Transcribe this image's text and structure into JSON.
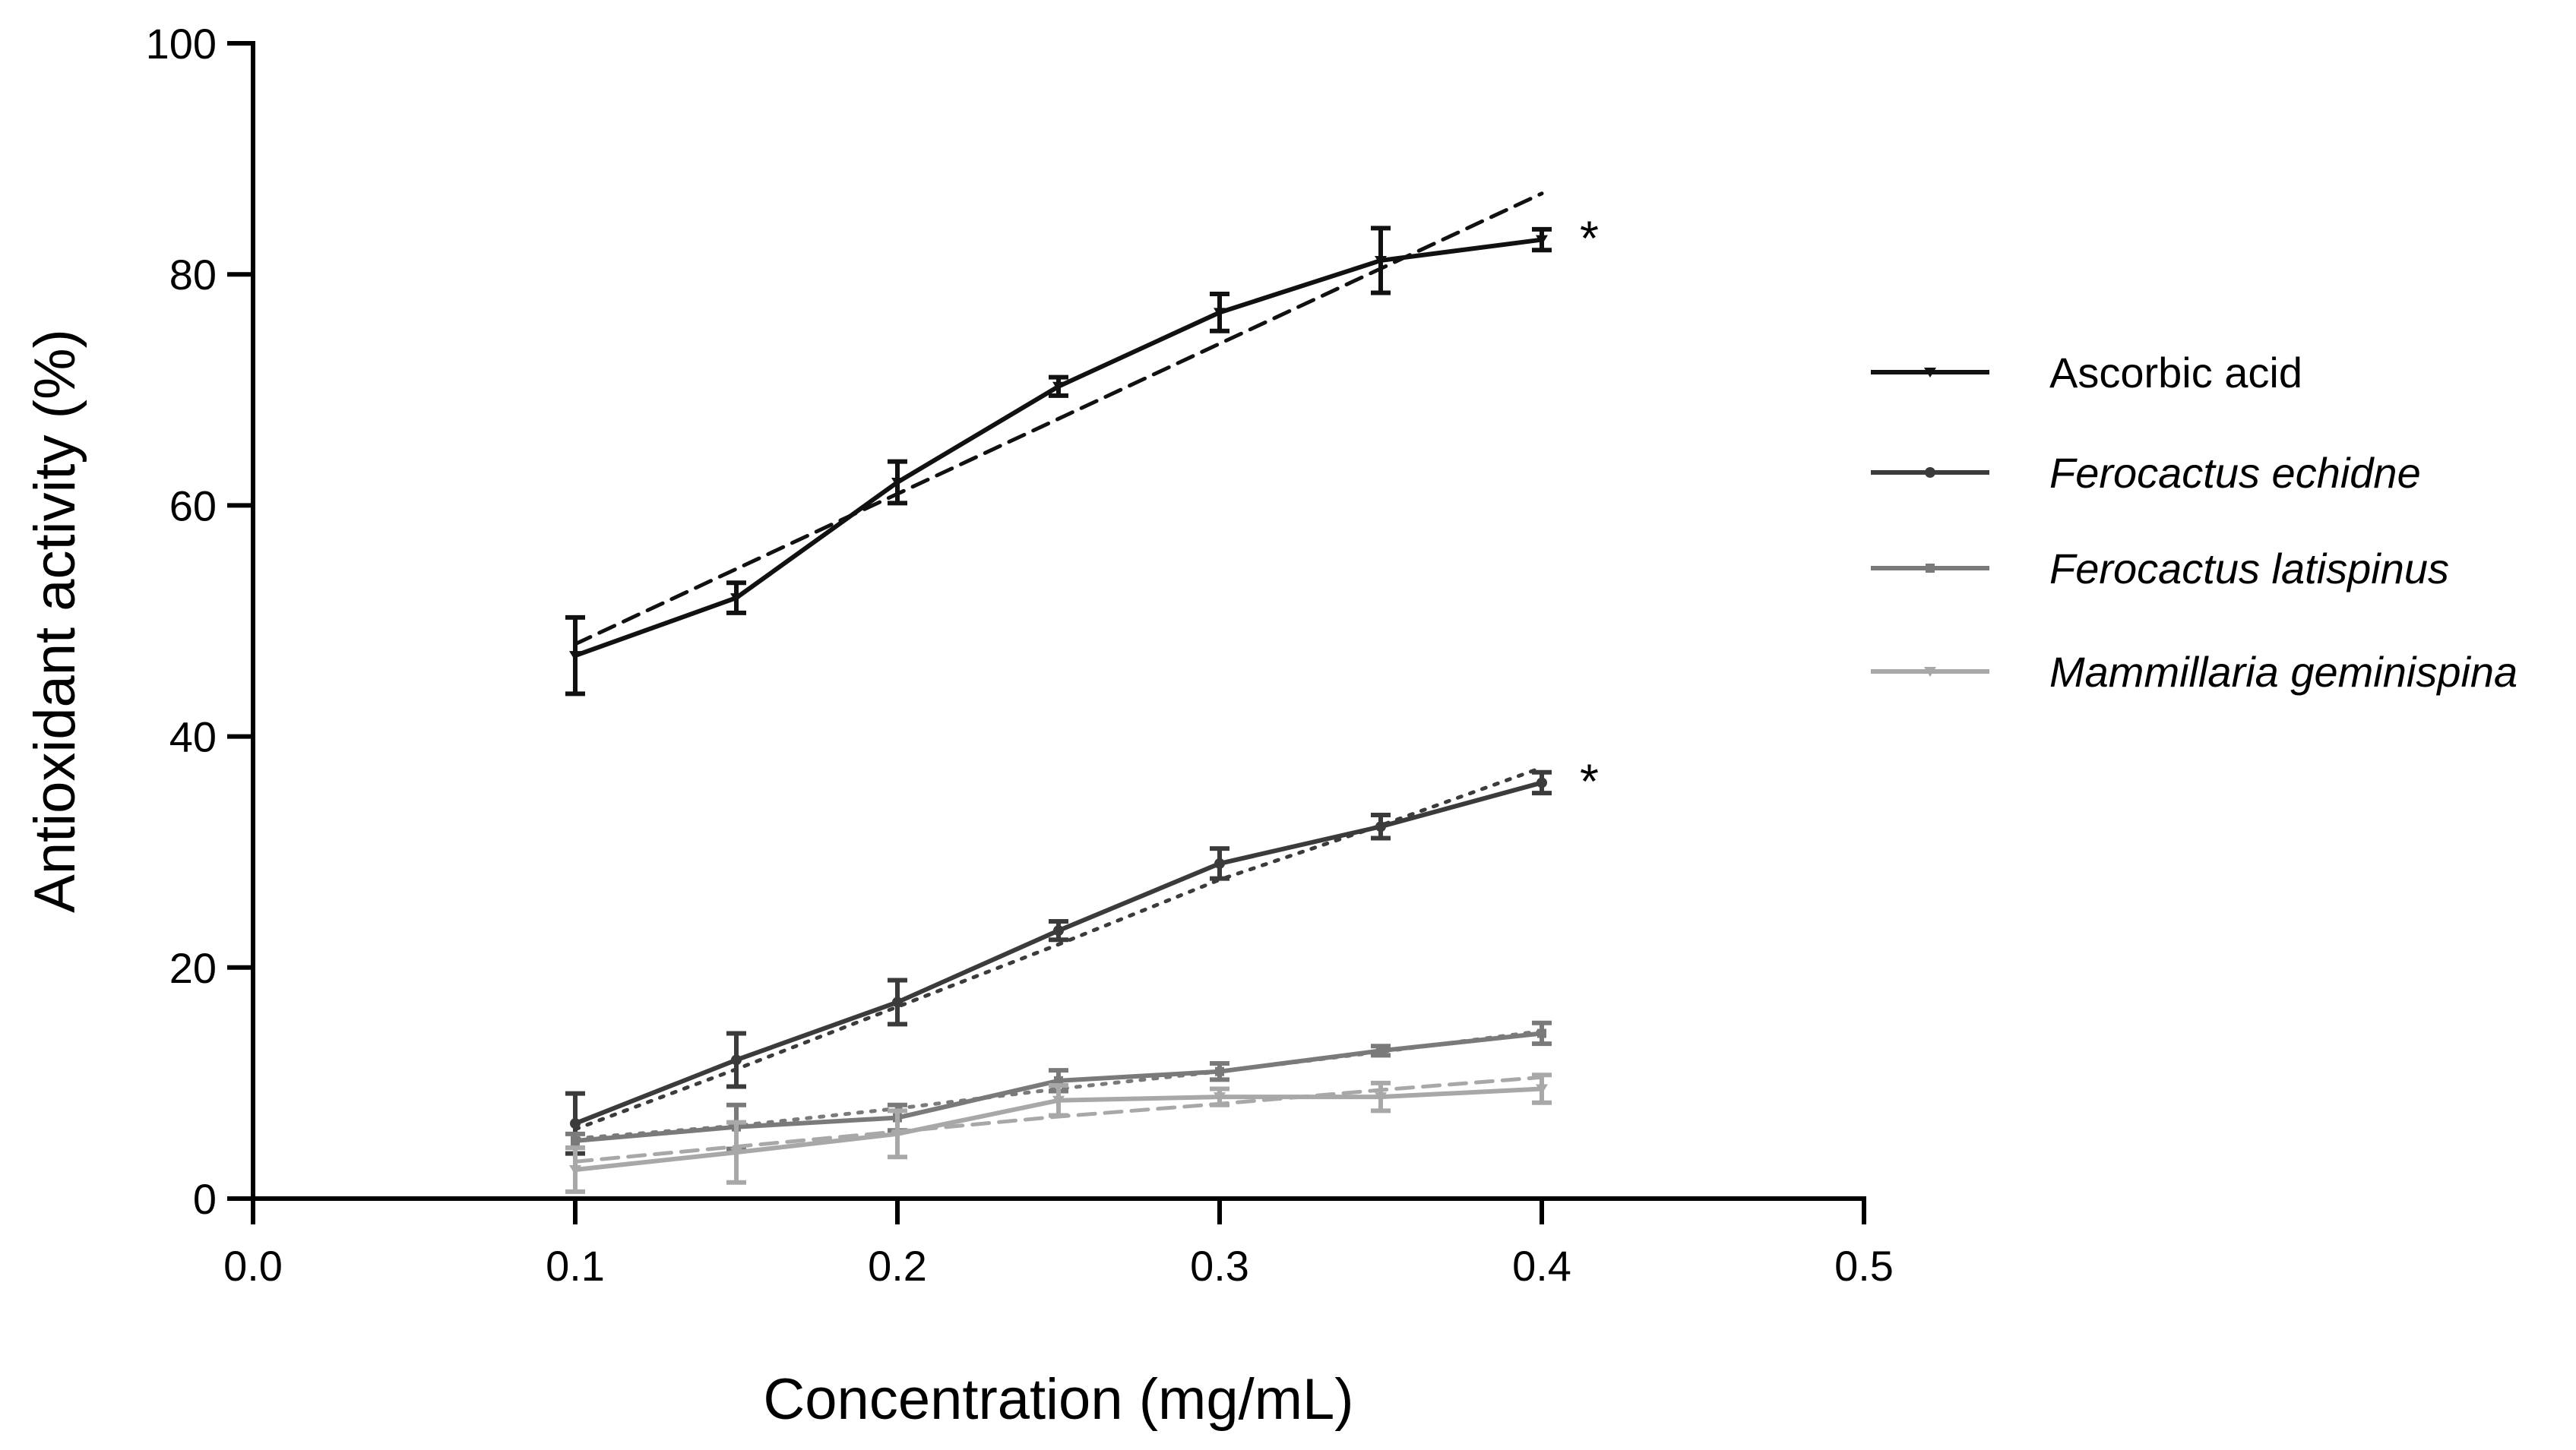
{
  "chart_data": {
    "type": "line",
    "title": "",
    "xlabel": "Concentration (mg/mL)",
    "ylabel": "Antioxidant activity (%)",
    "xlim": [
      0.0,
      0.5
    ],
    "ylim": [
      0,
      100
    ],
    "xticks": [
      "0.0",
      "0.1",
      "0.2",
      "0.3",
      "0.4",
      "0.5"
    ],
    "yticks": [
      "0",
      "20",
      "40",
      "60",
      "80",
      "100"
    ],
    "x": [
      0.1,
      0.15,
      0.2,
      0.25,
      0.3,
      0.35,
      0.4
    ],
    "grid": false,
    "legend_position": "right",
    "series": [
      {
        "name": "Ascorbic acid",
        "italic": false,
        "color": "#111111",
        "values": [
          47.0,
          52.0,
          62.0,
          70.3,
          76.7,
          81.2,
          83.0
        ],
        "errors": [
          3.3,
          1.3,
          1.8,
          0.8,
          1.6,
          2.8,
          0.9
        ],
        "fit": {
          "style": "dashed",
          "values": [
            48.0,
            54.5,
            61.0,
            67.5,
            74.0,
            80.5,
            87.0
          ]
        },
        "annotation": "*"
      },
      {
        "name": "Ferocactus echidne",
        "italic": true,
        "color": "#3b3b3b",
        "values": [
          6.5,
          12.0,
          17.0,
          23.2,
          29.0,
          32.2,
          36.0
        ],
        "errors": [
          2.6,
          2.3,
          1.9,
          0.8,
          1.3,
          1.0,
          0.9
        ],
        "fit": {
          "style": "dotted",
          "values": [
            6.0,
            11.2,
            16.6,
            22.0,
            27.6,
            32.3,
            37.3
          ]
        },
        "annotation": "*"
      },
      {
        "name": "Ferocactus latispinus",
        "italic": true,
        "color": "#7a7a7a",
        "values": [
          5.0,
          6.2,
          7.0,
          10.2,
          11.0,
          12.8,
          14.3
        ],
        "errors": [
          0.6,
          1.9,
          1.1,
          0.9,
          0.7,
          0.4,
          0.9
        ],
        "fit": {
          "style": "dotted",
          "values": [
            5.2,
            6.3,
            7.8,
            9.5,
            11.0,
            12.7,
            14.5
          ]
        }
      },
      {
        "name": "Mammillaria geminispina",
        "italic": true,
        "color": "#a8a8a8",
        "values": [
          2.5,
          4.0,
          5.6,
          8.5,
          8.8,
          8.8,
          9.5
        ],
        "errors": [
          1.9,
          2.6,
          2.0,
          1.3,
          0.7,
          1.2,
          1.2
        ],
        "fit": {
          "style": "dashed",
          "values": [
            3.2,
            4.5,
            5.8,
            7.1,
            8.2,
            9.4,
            10.5
          ]
        }
      }
    ]
  }
}
